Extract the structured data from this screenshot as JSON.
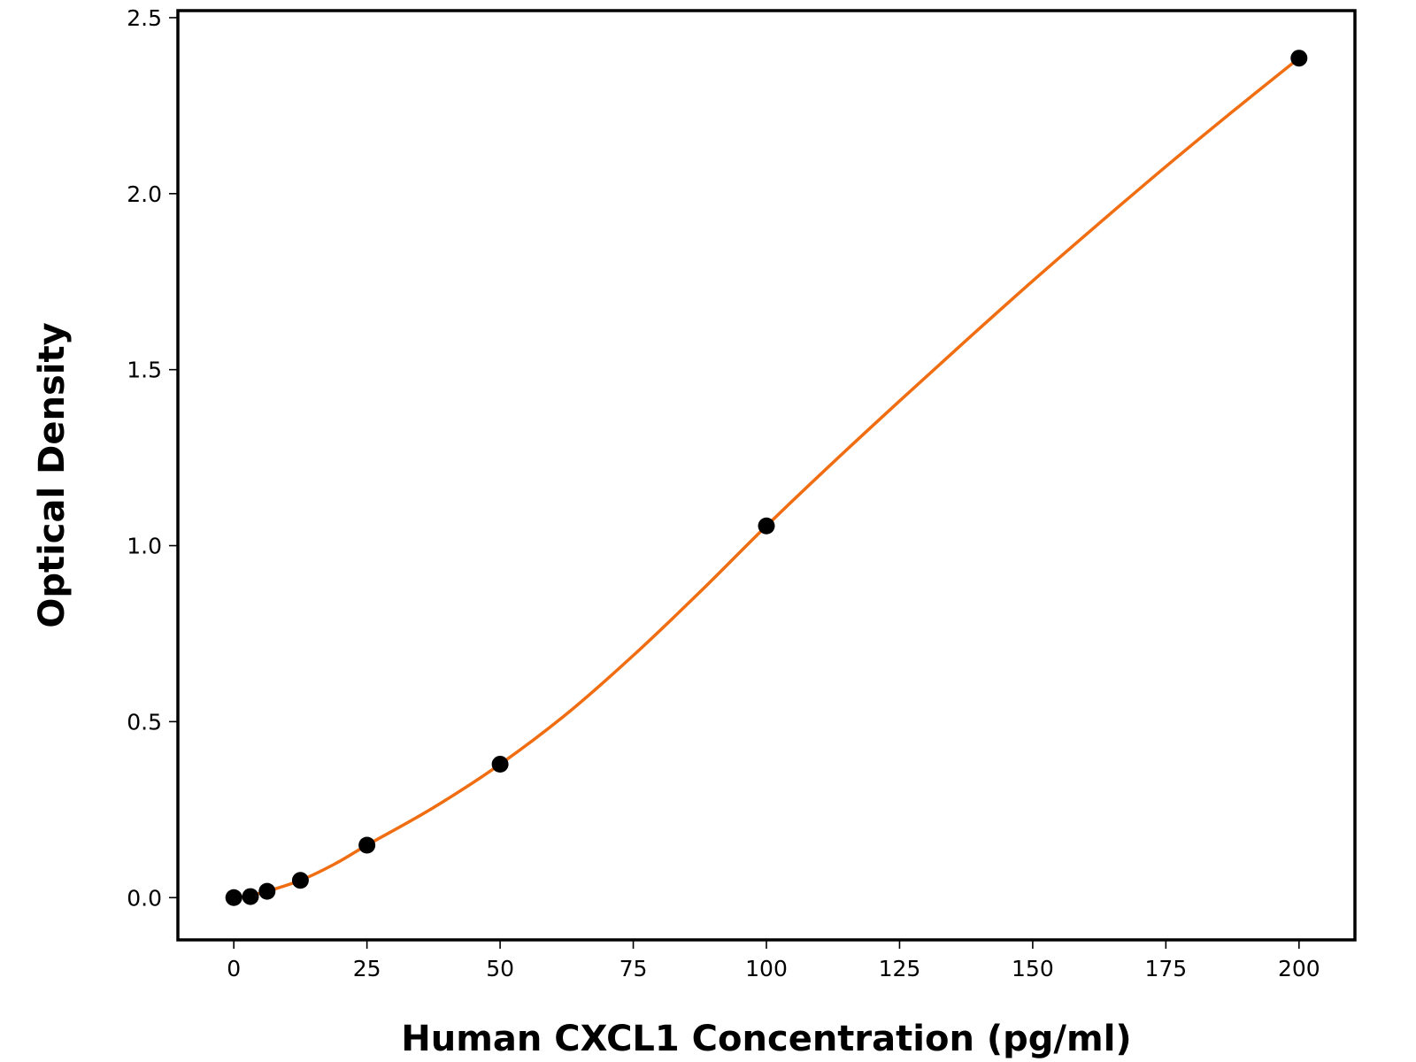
{
  "chart_data": {
    "type": "line",
    "title": "",
    "xlabel": "Human CXCL1 Concentration (pg/ml)",
    "ylabel": "Optical Density",
    "xlim": [
      -10.5,
      210.5
    ],
    "ylim": [
      -0.12,
      2.52
    ],
    "x_ticks": [
      0,
      25,
      50,
      75,
      100,
      125,
      150,
      175,
      200
    ],
    "y_ticks": [
      0.0,
      0.5,
      1.0,
      1.5,
      2.0,
      2.5
    ],
    "x_tick_labels": [
      "0",
      "25",
      "50",
      "75",
      "100",
      "125",
      "150",
      "175",
      "200"
    ],
    "y_tick_labels": [
      "0.0",
      "0.5",
      "1.0",
      "1.5",
      "2.0",
      "2.5"
    ],
    "grid": false,
    "legend": "none",
    "points": {
      "x": [
        0,
        3.125,
        6.25,
        12.5,
        25,
        50,
        100,
        200
      ],
      "y": [
        0.0,
        0.003,
        0.018,
        0.049,
        0.149,
        0.379,
        1.056,
        2.385
      ]
    },
    "fit_curve": {
      "x": [
        0,
        3.125,
        6.25,
        12.5,
        18.75,
        25,
        37.5,
        50,
        62.5,
        75,
        87.5,
        100,
        112.5,
        125,
        137.5,
        150,
        162.5,
        175,
        187.5,
        200
      ],
      "y": [
        0.0,
        0.006,
        0.018,
        0.049,
        0.094,
        0.149,
        0.256,
        0.379,
        0.522,
        0.688,
        0.868,
        1.056,
        1.236,
        1.411,
        1.583,
        1.752,
        1.916,
        2.077,
        2.233,
        2.385
      ]
    },
    "colors": {
      "curve": "#f06d11",
      "points": "#000000",
      "axes": "#000000"
    }
  }
}
